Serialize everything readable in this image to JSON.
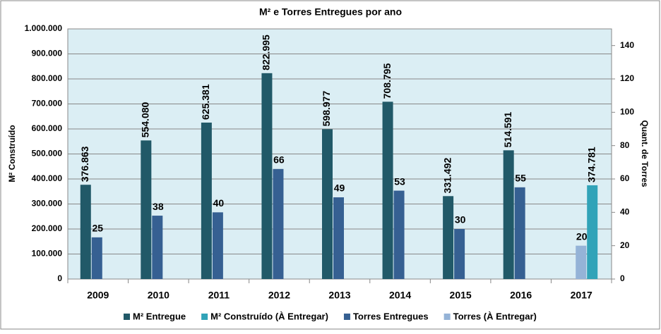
{
  "chart_data": {
    "type": "bar",
    "title": "M² e Torres Entregues por ano",
    "y_label": "M² Construído",
    "y2_label": "Quant. de Torres",
    "categories": [
      "2009",
      "2010",
      "2011",
      "2012",
      "2013",
      "2014",
      "2015",
      "2016",
      "2017"
    ],
    "series": [
      {
        "name": "M² Entregue",
        "color": "#215968",
        "values": [
          376863,
          554080,
          625381,
          822995,
          598977,
          708795,
          331492,
          514591,
          null
        ],
        "value_labels": [
          "376.863",
          "554.080",
          "625.381",
          "822.995",
          "598.977",
          "708.795",
          "331.492",
          "514.591",
          null
        ]
      },
      {
        "name": "M² Construído (À Entregar)",
        "color": "#31a3b8",
        "values": [
          null,
          null,
          null,
          null,
          null,
          null,
          null,
          null,
          374781
        ],
        "value_labels": [
          null,
          null,
          null,
          null,
          null,
          null,
          null,
          null,
          "374.781"
        ]
      },
      {
        "name": "Torres Entregues",
        "color": "#366092",
        "axis": "y2",
        "values": [
          25,
          38,
          40,
          66,
          49,
          53,
          30,
          55,
          null
        ]
      },
      {
        "name": "Torres (À Entregar)",
        "color": "#95b3d7",
        "axis": "y2",
        "values": [
          null,
          null,
          null,
          null,
          null,
          null,
          null,
          null,
          20
        ]
      }
    ],
    "ylim": [
      0,
      1000000
    ],
    "yticks": [
      0,
      {
        "value": 100000,
        "label": "100.000"
      },
      {
        "value": 200000,
        "label": "200.000"
      },
      {
        "value": 300000,
        "label": "300.000"
      },
      {
        "value": 400000,
        "label": "400.000"
      },
      {
        "value": 500000,
        "label": "500.000"
      },
      {
        "value": 600000,
        "label": "600.000"
      },
      {
        "value": 700000,
        "label": "700.000"
      },
      {
        "value": 800000,
        "label": "800.000"
      },
      {
        "value": 900000,
        "label": "900.000"
      },
      {
        "value": 1000000,
        "label": "1.000.000"
      }
    ],
    "y2lim": [
      0,
      150
    ],
    "y2ticks": [
      0,
      20,
      40,
      60,
      80,
      100,
      120,
      140
    ],
    "grid": true,
    "legend": "bottom"
  }
}
